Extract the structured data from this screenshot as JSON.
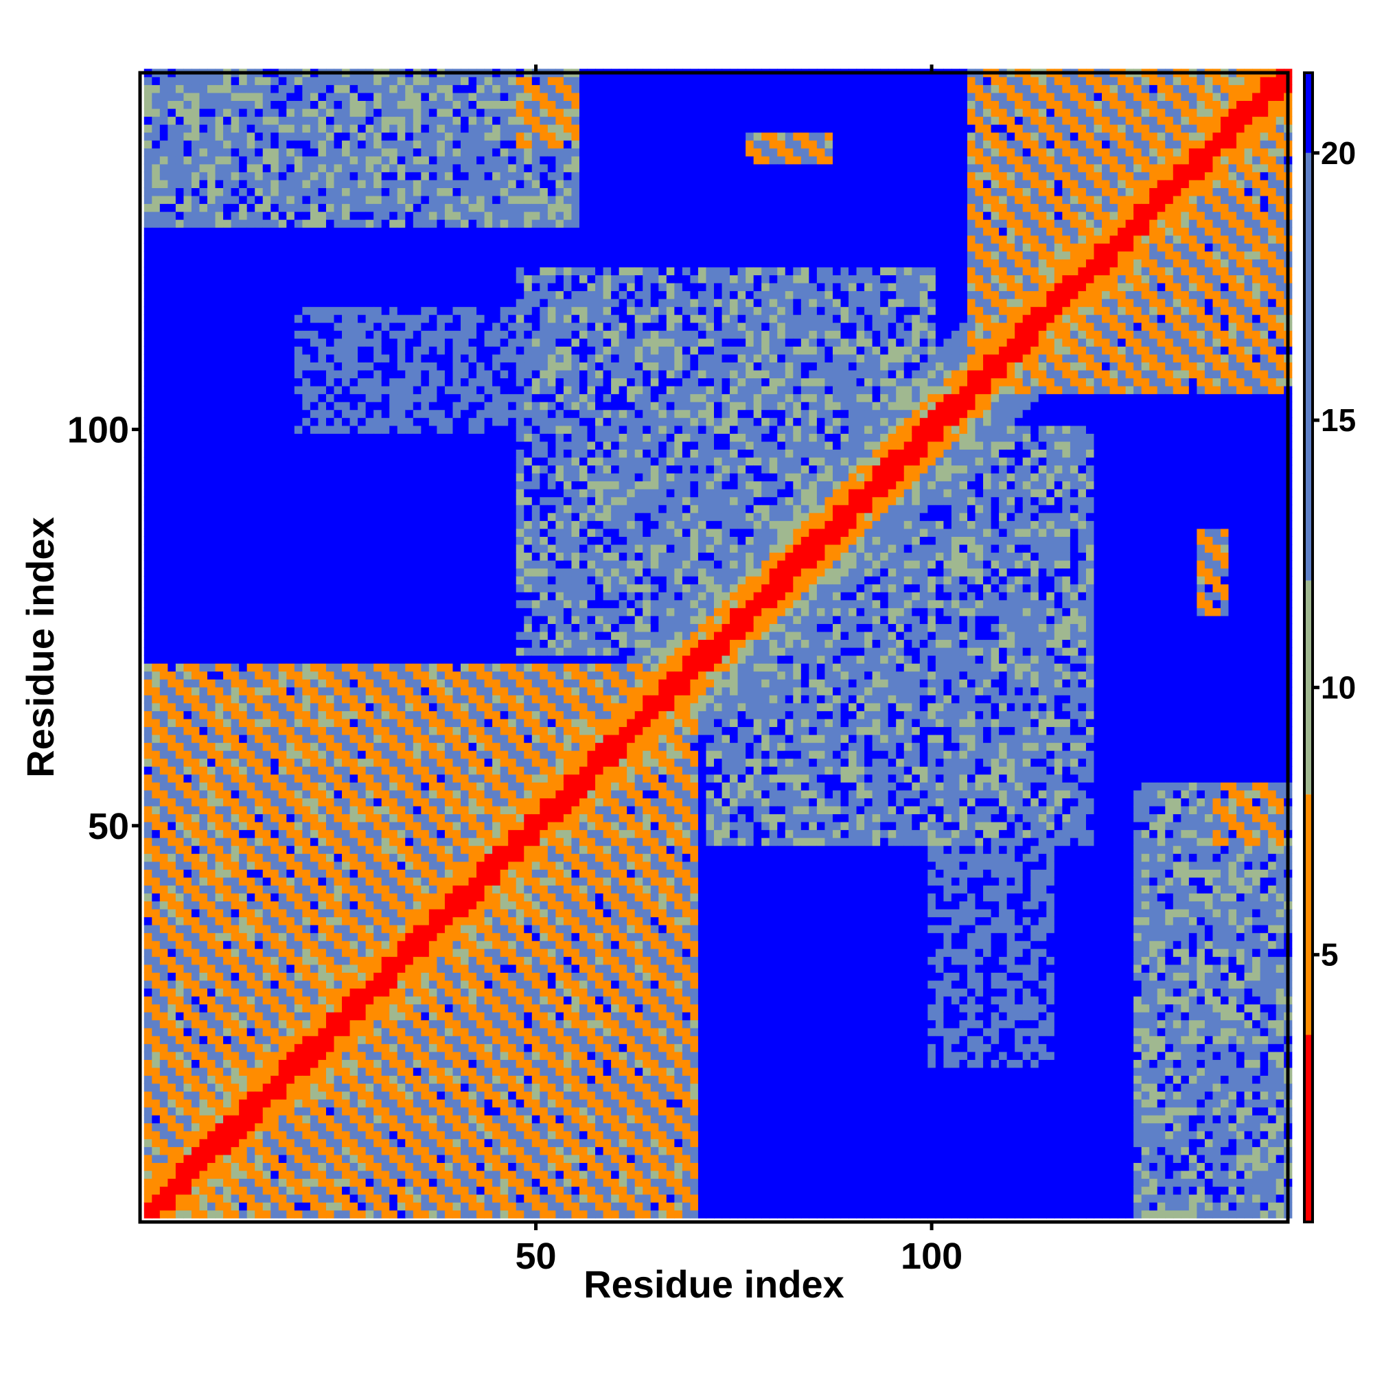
{
  "chart_data": {
    "type": "heatmap",
    "title": "",
    "xlabel": "Residue index",
    "ylabel": "Residue index",
    "n_residues": 145,
    "xlim": [
      1,
      145
    ],
    "ylim": [
      1,
      145
    ],
    "x_ticks": [
      50,
      100
    ],
    "x_tick_labels": [
      "50",
      "100"
    ],
    "y_ticks": [
      50,
      100
    ],
    "y_tick_labels": [
      "50",
      "100"
    ],
    "top_ticks": [
      50,
      100
    ],
    "colorbar": {
      "ticks": [
        5,
        10,
        15,
        20
      ],
      "tick_labels": [
        "5",
        "10",
        "15",
        "20"
      ],
      "range": [
        0,
        21.5
      ],
      "segments": [
        {
          "from": 0,
          "to": 3.5,
          "color": "#ff0000"
        },
        {
          "from": 3.5,
          "to": 8.0,
          "color": "#ff8c00"
        },
        {
          "from": 8.0,
          "to": 12.0,
          "color": "#a0b890"
        },
        {
          "from": 12.0,
          "to": 20.0,
          "color": "#5e80c8"
        },
        {
          "from": 20.0,
          "to": 21.5,
          "color": "#0000ff"
        }
      ]
    },
    "value_description": "pairwise residue distance map, symmetric about the diagonal",
    "colors": {
      "far": "#0000ff",
      "mid_far": "#5e80c8",
      "mid": "#a0b890",
      "near": "#ff8c00",
      "contact": "#ff0000"
    },
    "contact_regions": [
      {
        "name": "diagonal-band",
        "i_range": [
          1,
          145
        ],
        "j_range": [
          1,
          145
        ],
        "min_value": 1
      },
      {
        "name": "n-terminal-domain",
        "i_range": [
          1,
          70
        ],
        "j_range": [
          1,
          70
        ],
        "min_value": 6
      },
      {
        "name": "antiparallel-strand-1",
        "i_range": [
          24,
          36
        ],
        "j_range": [
          36,
          46
        ],
        "min_value": 5
      },
      {
        "name": "antiparallel-strand-2",
        "i_range": [
          36,
          44
        ],
        "j_range": [
          46,
          55
        ],
        "min_value": 5
      },
      {
        "name": "middle-cross-block",
        "i_range": [
          48,
          100
        ],
        "j_range": [
          72,
          120
        ],
        "min_value": 9
      },
      {
        "name": "c-terminal-domain",
        "i_range": [
          105,
          145
        ],
        "j_range": [
          105,
          145
        ],
        "min_value": 6
      },
      {
        "name": "n-to-c-block",
        "i_range": [
          1,
          55
        ],
        "j_range": [
          126,
          145
        ],
        "min_value": 8
      },
      {
        "name": "n-to-c-strand",
        "i_range": [
          48,
          55
        ],
        "j_range": [
          136,
          144
        ],
        "min_value": 6
      },
      {
        "name": "mid-to-c-block",
        "i_range": [
          100,
          115
        ],
        "j_range": [
          20,
          60
        ],
        "min_value": 12
      },
      {
        "name": "isolated-contact-a",
        "i_range": [
          85,
          87
        ],
        "j_range": [
          134,
          137
        ],
        "min_value": 6
      },
      {
        "name": "isolated-contact-b",
        "i_range": [
          134,
          137
        ],
        "j_range": [
          77,
          85
        ],
        "min_value": 6
      }
    ]
  }
}
